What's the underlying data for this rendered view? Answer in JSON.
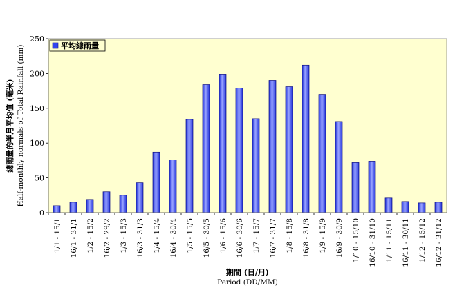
{
  "chart_data": {
    "type": "bar",
    "categories": [
      "1/1 - 15/1",
      "16/1 - 31/1",
      "1/2 - 15/2",
      "16/2 - 29/2",
      "1/3 - 15/3",
      "16/3 - 31/3",
      "1/4 - 15/4",
      "16/4 - 30/4",
      "1/5 - 15/5",
      "16/5 - 30/5",
      "1/6 - 15/6",
      "16/6 - 30/6",
      "1/7 - 15/7",
      "16/7 - 31/7",
      "1/8 - 15/8",
      "16/8 - 31/8",
      "1/9 - 15/9",
      "16/9 - 30/9",
      "1/10 - 15/10",
      "16/10 - 31/10",
      "1/11 - 15/11",
      "16/11 - 30/11",
      "1/12 - 15/12",
      "16/12 - 31/12"
    ],
    "series": [
      {
        "name": "平均總雨量",
        "values": [
          10,
          15,
          19,
          30,
          25,
          43,
          87,
          76,
          134,
          184,
          199,
          179,
          135,
          190,
          181,
          212,
          170,
          131,
          72,
          74,
          21,
          16,
          14,
          15
        ]
      }
    ],
    "xlabel": "期間 (日/月)",
    "xlabel_en": "Period (DD/MM)",
    "ylabel": "總雨量的半月平均值 (毫米)",
    "ylabel_en": "Half-monthly  normals of Total Rainfall (mm)",
    "ylim": [
      0,
      250
    ],
    "yticks": [
      0,
      50,
      100,
      150,
      200,
      250
    ],
    "grid": false,
    "legend_position": "top-left",
    "colors": {
      "plot_background": "#FFFFD0",
      "bar_fill": "#3344EE",
      "bar_highlight": "#9AA4FF",
      "bar_stroke": "#101080"
    }
  }
}
